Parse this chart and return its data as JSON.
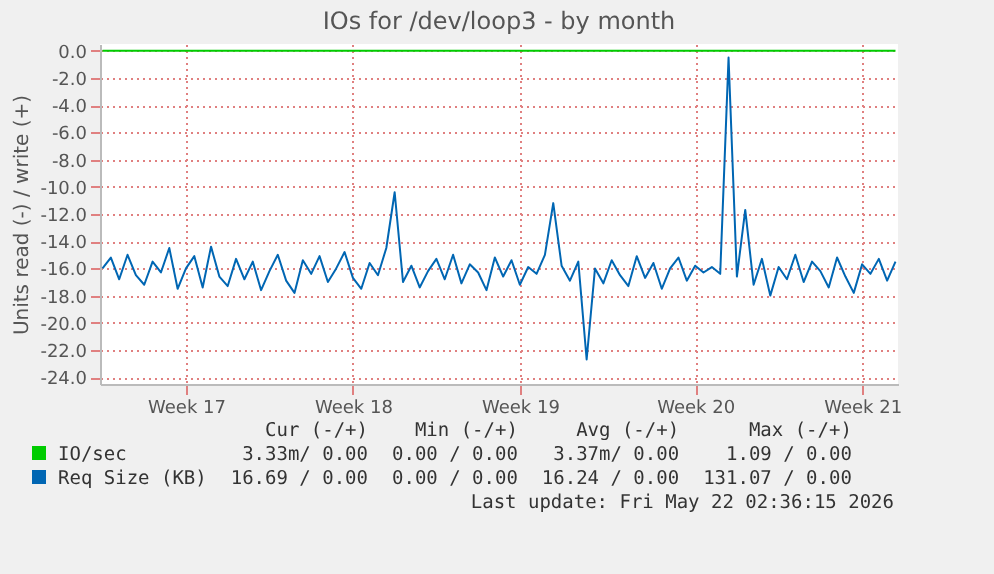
{
  "chart_data": {
    "type": "line",
    "title": "IOs for /dev/loop3 - by month",
    "ylabel": "Units read (-) / write (+)",
    "categories": [
      null,
      null,
      null,
      null,
      null,
      null,
      null,
      null,
      null,
      null,
      "Week 17",
      null,
      null,
      null,
      null,
      null,
      null,
      null,
      null,
      null,
      null,
      null,
      null,
      null,
      null,
      null,
      null,
      null,
      null,
      null,
      "Week 18",
      null,
      null,
      null,
      null,
      null,
      null,
      null,
      null,
      null,
      null,
      null,
      null,
      null,
      null,
      null,
      null,
      null,
      null,
      null,
      "Week 19",
      null,
      null,
      null,
      null,
      null,
      null,
      null,
      null,
      null,
      null,
      null,
      null,
      null,
      null,
      null,
      null,
      null,
      null,
      null,
      null,
      "Week 20",
      null,
      null,
      null,
      null,
      null,
      null,
      null,
      null,
      null,
      null,
      null,
      null,
      null,
      null,
      null,
      null,
      null,
      null,
      null,
      "Week 21",
      null,
      null,
      null,
      null
    ],
    "ylim": [
      -24.5,
      0.5
    ],
    "yticks": [
      {
        "value": 0,
        "label": "0.0"
      },
      {
        "value": -2,
        "label": "-2.0"
      },
      {
        "value": -4,
        "label": "-4.0"
      },
      {
        "value": -6,
        "label": "-6.0"
      },
      {
        "value": -8,
        "label": "-8.0"
      },
      {
        "value": -10,
        "label": "-10.0"
      },
      {
        "value": -12,
        "label": "-12.0"
      },
      {
        "value": -14,
        "label": "-14.0"
      },
      {
        "value": -16,
        "label": "-16.0"
      },
      {
        "value": -18,
        "label": "-18.0"
      },
      {
        "value": -20,
        "label": "-20.0"
      },
      {
        "value": -22,
        "label": "-22.0"
      },
      {
        "value": -24,
        "label": "-24.0"
      }
    ],
    "grid": true,
    "legend": "bottom",
    "series": [
      {
        "name": "IO/sec",
        "color": "#00cc00",
        "values": [
          0,
          0,
          0,
          0,
          0,
          0,
          0,
          0,
          0,
          0,
          0,
          0,
          0,
          0,
          0,
          0,
          0,
          0,
          0,
          0,
          0,
          0,
          0,
          0,
          0,
          0,
          0,
          0,
          0,
          0,
          0,
          0,
          0,
          0,
          0,
          0,
          0,
          0,
          0,
          0,
          0,
          0,
          0,
          0,
          0,
          0,
          0,
          0,
          0,
          0,
          0,
          0,
          0,
          0,
          0,
          0,
          0,
          0,
          0,
          0,
          0,
          0,
          0,
          0,
          0,
          0,
          0,
          0,
          0,
          0,
          0,
          0,
          0,
          0,
          0,
          0,
          0,
          0,
          0,
          0,
          0,
          0,
          0,
          0,
          0,
          0,
          0,
          0,
          0,
          0,
          0,
          0,
          0,
          0,
          0,
          0
        ]
      },
      {
        "name": "Req Size (KB)",
        "color": "#0066b3",
        "values": [
          -16.0,
          -15.2,
          -16.8,
          -15.0,
          -16.5,
          -17.2,
          -15.5,
          -16.3,
          -14.5,
          -17.5,
          -16.0,
          -15.1,
          -17.4,
          -14.4,
          -16.6,
          -17.3,
          -15.3,
          -16.8,
          -15.5,
          -17.6,
          -16.2,
          -15.0,
          -16.9,
          -17.8,
          -15.4,
          -16.4,
          -15.1,
          -17.0,
          -16.0,
          -14.8,
          -16.7,
          -17.5,
          -15.6,
          -16.5,
          -14.5,
          -10.4,
          -17.0,
          -15.8,
          -17.4,
          -16.2,
          -15.3,
          -16.8,
          -15.0,
          -17.1,
          -15.7,
          -16.3,
          -17.6,
          -15.2,
          -16.6,
          -15.4,
          -17.2,
          -15.9,
          -16.4,
          -15.0,
          -11.2,
          -15.8,
          -16.9,
          -15.5,
          -22.7,
          -16.0,
          -17.1,
          -15.4,
          -16.5,
          -17.3,
          -15.1,
          -16.7,
          -15.6,
          -17.5,
          -16.0,
          -15.2,
          -16.9,
          -15.8,
          -16.3,
          -15.9,
          -16.4,
          -0.5,
          -16.6,
          -11.7,
          -17.2,
          -15.3,
          -18.0,
          -15.9,
          -16.8,
          -15.0,
          -17.0,
          -15.5,
          -16.2,
          -17.4,
          -15.2,
          -16.6,
          -17.8,
          -15.7,
          -16.4,
          -15.3,
          -16.9,
          -15.5
        ]
      }
    ],
    "annotations": [
      "Cur (-/+)",
      "Min (-/+)",
      "Avg (-/+)",
      "Max (-/+)",
      "3.33m/ 0.00",
      "0.00 / 0.00",
      "3.37m/ 0.00",
      "1.09 / 0.00",
      "16.69 / 0.00",
      "0.00 / 0.00",
      "16.24 / 0.00",
      "131.07 / 0.00",
      "Last update: Fri May 22 02:36:15 2026"
    ]
  }
}
